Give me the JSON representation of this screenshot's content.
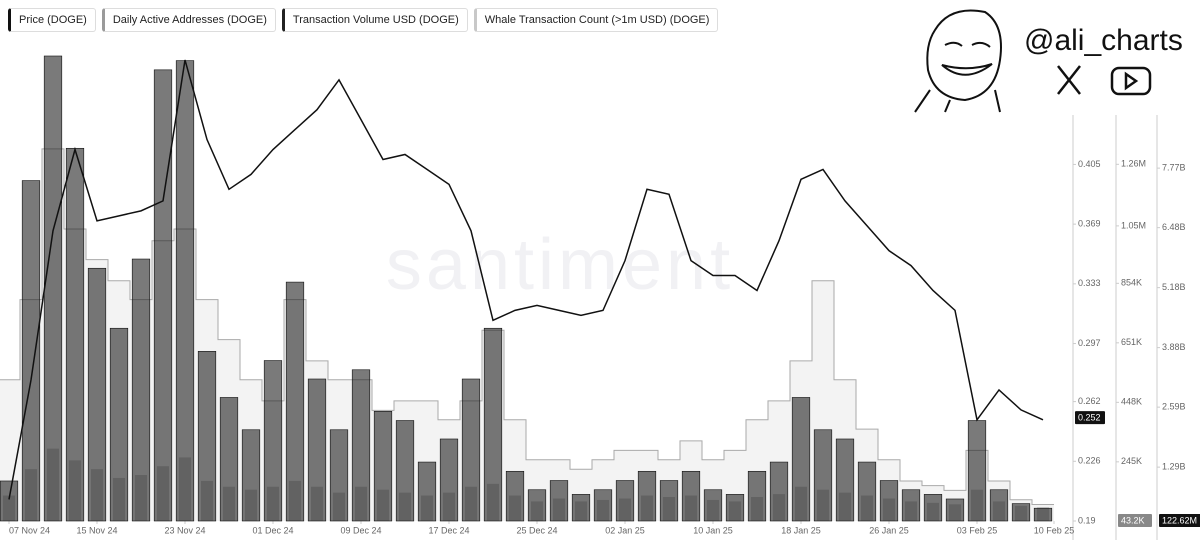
{
  "chart_data": {
    "type": "multi-axis",
    "watermark": "santiment",
    "handle": "@ali_charts",
    "x": [
      "2024-11-07",
      "2024-11-09",
      "2024-11-11",
      "2024-11-13",
      "2024-11-15",
      "2024-11-17",
      "2024-11-19",
      "2024-11-21",
      "2024-11-23",
      "2024-11-25",
      "2024-11-27",
      "2024-11-29",
      "2024-12-01",
      "2024-12-03",
      "2024-12-05",
      "2024-12-07",
      "2024-12-09",
      "2024-12-11",
      "2024-12-13",
      "2024-12-15",
      "2024-12-17",
      "2024-12-19",
      "2024-12-21",
      "2024-12-23",
      "2024-12-25",
      "2024-12-27",
      "2024-12-29",
      "2024-12-31",
      "2025-01-02",
      "2025-01-04",
      "2025-01-06",
      "2025-01-08",
      "2025-01-10",
      "2025-01-12",
      "2025-01-14",
      "2025-01-16",
      "2025-01-18",
      "2025-01-20",
      "2025-01-22",
      "2025-01-24",
      "2025-01-26",
      "2025-01-28",
      "2025-01-30",
      "2025-02-01",
      "2025-02-03",
      "2025-02-05",
      "2025-02-07",
      "2025-02-09"
    ],
    "xlim": [
      "2024-11-07",
      "2025-02-10"
    ],
    "xticks": [
      {
        "value": "2024-11-07",
        "label": "07 Nov 24"
      },
      {
        "value": "2024-11-15",
        "label": "15 Nov 24"
      },
      {
        "value": "2024-11-23",
        "label": "23 Nov 24"
      },
      {
        "value": "2024-12-01",
        "label": "01 Dec 24"
      },
      {
        "value": "2024-12-09",
        "label": "09 Dec 24"
      },
      {
        "value": "2024-12-17",
        "label": "17 Dec 24"
      },
      {
        "value": "2024-12-25",
        "label": "25 Dec 24"
      },
      {
        "value": "2025-01-02",
        "label": "02 Jan 25"
      },
      {
        "value": "2025-01-10",
        "label": "10 Jan 25"
      },
      {
        "value": "2025-01-18",
        "label": "18 Jan 25"
      },
      {
        "value": "2025-01-26",
        "label": "26 Jan 25"
      },
      {
        "value": "2025-02-03",
        "label": "03 Feb 25"
      },
      {
        "value": "2025-02-10",
        "label": "10 Feb 25"
      }
    ],
    "ylim": [
      0.19,
      0.474
    ],
    "yticks": [
      0.19,
      0.226,
      0.262,
      0.297,
      0.333,
      0.369,
      0.405
    ],
    "y2lim": [
      43200,
      1650000
    ],
    "y2ticks": [
      {
        "value": 245000,
        "label": "245K"
      },
      {
        "value": 448000,
        "label": "448K"
      },
      {
        "value": 651000,
        "label": "651K"
      },
      {
        "value": 854000,
        "label": "854K"
      },
      {
        "value": 1050000,
        "label": "1.05M"
      },
      {
        "value": 1260000,
        "label": "1.26M"
      }
    ],
    "y3lim": [
      122620000,
      10330000000
    ],
    "y3ticks": [
      {
        "value": 1290000000,
        "label": "1.29B"
      },
      {
        "value": 2590000000,
        "label": "2.59B"
      },
      {
        "value": 3880000000,
        "label": "3.88B"
      },
      {
        "value": 5180000000,
        "label": "5.18B"
      },
      {
        "value": 6480000000,
        "label": "6.48B"
      },
      {
        "value": 7770000000,
        "label": "7.77B"
      }
    ],
    "y4lim": [
      0,
      2000
    ],
    "current_values": [
      {
        "axis": "y",
        "value": 0.252
      },
      {
        "axis": "y2",
        "value": 43200,
        "label": "43.2K"
      },
      {
        "axis": "y3",
        "value": 122620000,
        "label": "122.62M"
      }
    ],
    "series": [
      {
        "name": "Price (DOGE)",
        "color": "#111111",
        "axis": "y",
        "kind": "line",
        "values": [
          0.203,
          0.275,
          0.365,
          0.414,
          0.371,
          0.374,
          0.377,
          0.383,
          0.468,
          0.42,
          0.39,
          0.399,
          0.414,
          0.426,
          0.438,
          0.456,
          0.432,
          0.408,
          0.411,
          0.402,
          0.393,
          0.365,
          0.311,
          0.317,
          0.32,
          0.317,
          0.314,
          0.317,
          0.347,
          0.39,
          0.387,
          0.347,
          0.338,
          0.338,
          0.329,
          0.359,
          0.396,
          0.402,
          0.383,
          0.368,
          0.353,
          0.344,
          0.329,
          0.317,
          0.251,
          0.269,
          0.257,
          0.251
        ]
      },
      {
        "name": "Daily Active Addresses (DOGE)",
        "color": "#9a9a9a",
        "axis": "y2",
        "kind": "bar",
        "values": [
          130000,
          220000,
          290000,
          250000,
          220000,
          190000,
          200000,
          230000,
          260000,
          180000,
          160000,
          150000,
          160000,
          180000,
          160000,
          140000,
          160000,
          150000,
          140000,
          130000,
          140000,
          160000,
          170000,
          130000,
          110000,
          120000,
          110000,
          115000,
          120000,
          130000,
          125000,
          130000,
          115000,
          110000,
          125000,
          135000,
          160000,
          150000,
          140000,
          130000,
          120000,
          110000,
          105000,
          100000,
          150000,
          110000,
          95000,
          90000
        ]
      },
      {
        "name": "Transaction Volume USD (DOGE)",
        "color": "#222222",
        "axis": "y3",
        "kind": "bar",
        "values": [
          990000000,
          7500000000,
          10200000000,
          8200000000,
          5600000000,
          4300000000,
          5800000000,
          9900000000,
          10100000000,
          3800000000,
          2800000000,
          2100000000,
          3600000000,
          5300000000,
          3200000000,
          2100000000,
          3400000000,
          2500000000,
          2300000000,
          1400000000,
          1900000000,
          3200000000,
          4300000000,
          1200000000,
          800000000,
          1000000000,
          700000000,
          800000000,
          1000000000,
          1200000000,
          1000000000,
          1200000000,
          800000000,
          700000000,
          1200000000,
          1400000000,
          2800000000,
          2100000000,
          1900000000,
          1400000000,
          1000000000,
          800000000,
          700000000,
          600000000,
          2300000000,
          800000000,
          500000000,
          400000000
        ]
      },
      {
        "name": "Whale Transaction Count (>1m USD) (DOGE)",
        "color": "#c8c8c8",
        "axis": "y4",
        "kind": "step",
        "values": [
          600,
          940,
          1580,
          1240,
          1110,
          1020,
          940,
          1190,
          1240,
          940,
          770,
          600,
          510,
          940,
          680,
          600,
          600,
          470,
          510,
          510,
          430,
          510,
          810,
          430,
          260,
          260,
          220,
          260,
          300,
          300,
          260,
          340,
          260,
          300,
          430,
          510,
          680,
          1020,
          600,
          390,
          260,
          170,
          150,
          130,
          300,
          170,
          90,
          70
        ]
      }
    ]
  }
}
